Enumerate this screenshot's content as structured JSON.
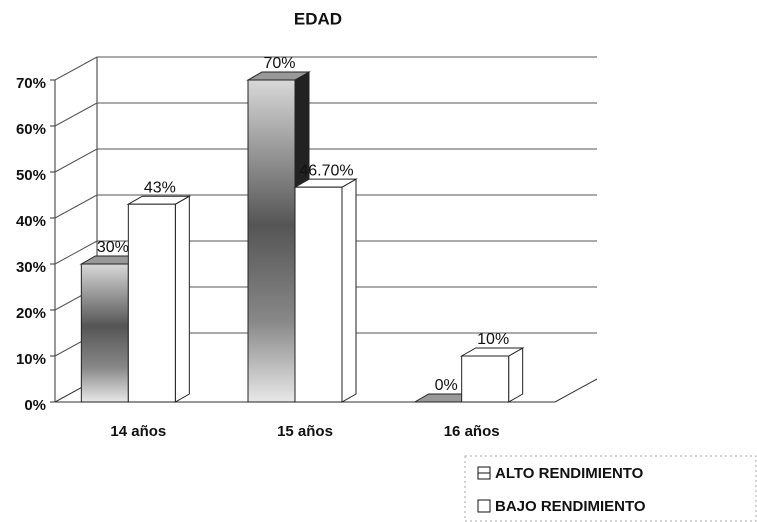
{
  "chart_data": {
    "type": "bar3d",
    "title": "EDAD",
    "categories": [
      "14 años",
      "15 años",
      "16 años"
    ],
    "series": [
      {
        "name": "ALTO RENDIMIENTO",
        "color": "#555555",
        "values": [
          30,
          70,
          0
        ],
        "value_labels": [
          "30%",
          "70%",
          "0%"
        ]
      },
      {
        "name": "BAJO RENDIMIENTO",
        "color": "#ffffff",
        "values": [
          43,
          46.7,
          10
        ],
        "value_labels": [
          "43%",
          "46.70%",
          "10%"
        ]
      }
    ],
    "ylim": [
      0,
      70
    ],
    "yticks": [
      {
        "value": 0,
        "label": "0%"
      },
      {
        "value": 10,
        "label": "10%"
      },
      {
        "value": 20,
        "label": "20%"
      },
      {
        "value": 30,
        "label": "30%"
      },
      {
        "value": 40,
        "label": "40%"
      },
      {
        "value": 50,
        "label": "50%"
      },
      {
        "value": 60,
        "label": "60%"
      },
      {
        "value": 70,
        "label": "70%"
      }
    ],
    "grid": true,
    "legend": "bottom-right"
  }
}
